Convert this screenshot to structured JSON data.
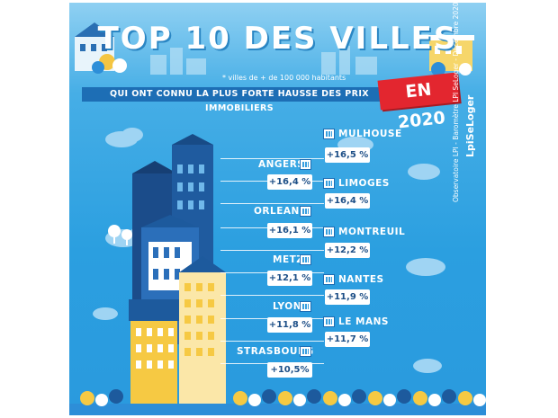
{
  "title": "TOP 10 DES VILLES",
  "subtitle_note": "* villes de + de 100 000 habitants",
  "ribbon_text": "QUI ONT CONNU LA PLUS FORTE HAUSSE DES PRIX IMMOBILIERS",
  "year_badge": "EN 2020",
  "brand": "LpiSeLoger",
  "source_credit": "Observatoire LPI - Baromètre LPI SeLoger - Décembre 2020",
  "cities_right": [
    {
      "name": "MULHOUSE",
      "value": "+16,5 %"
    },
    {
      "name": "LIMOGES",
      "value": "+16,4 %"
    },
    {
      "name": "MONTREUIL",
      "value": "+12,2 %"
    },
    {
      "name": "NANTES",
      "value": "+11,9 %"
    },
    {
      "name": "LE MANS",
      "value": "+11,7 %"
    }
  ],
  "cities_left": [
    {
      "name": "ANGERS",
      "value": "+16,4 %"
    },
    {
      "name": "ORLEANS",
      "value": "+16,1 %"
    },
    {
      "name": "METZ",
      "value": "+12,1 %"
    },
    {
      "name": "LYON",
      "value": "+11,8 %"
    },
    {
      "name": "STRASBOURG",
      "value": "+10,5%"
    }
  ],
  "colors": {
    "sky": "#2b9fe0",
    "ribbon": "#1d6eb5",
    "badge": "#e3262f",
    "text_dark": "#1d4f87"
  }
}
